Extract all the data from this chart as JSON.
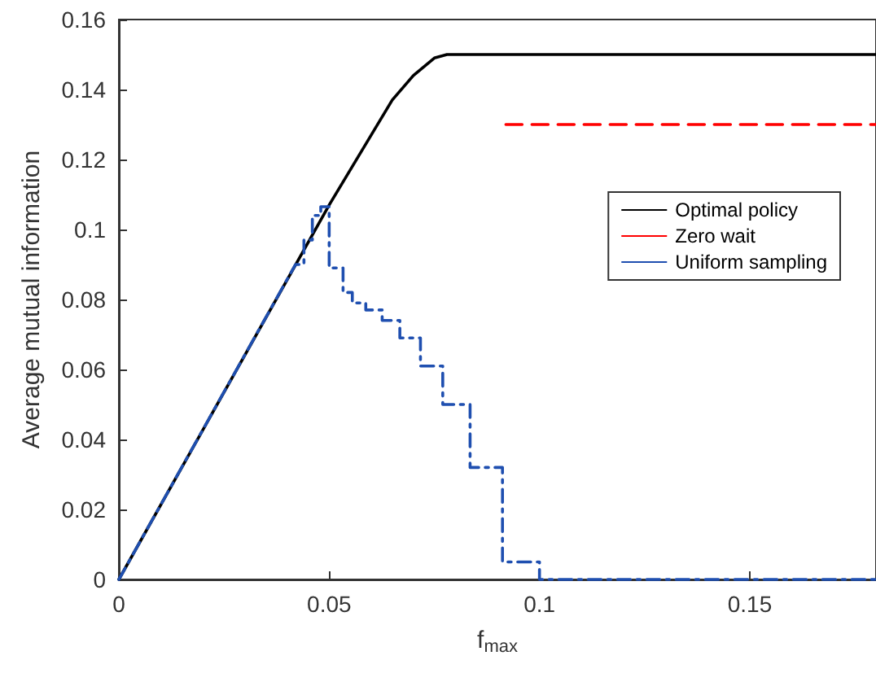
{
  "chart_data": {
    "type": "line",
    "xlabel": "f$_{max}$",
    "ylabel": "Average mutual information",
    "xlim": [
      0,
      0.18
    ],
    "ylim": [
      0,
      0.16
    ],
    "xticks": [
      0,
      0.05,
      0.1,
      0.15
    ],
    "yticks": [
      0,
      0.02,
      0.04,
      0.06,
      0.08,
      0.1,
      0.12,
      0.14,
      0.16
    ],
    "grid": false,
    "legend": "right",
    "marker": "none",
    "series": [
      {
        "name": "Optimal policy",
        "color": "#000000",
        "line_style": "solid",
        "x": [
          0,
          0.05,
          0.06,
          0.065,
          0.07,
          0.075,
          0.078,
          0.18
        ],
        "values": [
          0,
          0.107,
          0.127,
          0.137,
          0.144,
          0.149,
          0.15,
          0.15
        ]
      },
      {
        "name": "Zero wait",
        "color": "#ff0000",
        "line_style": "dashed",
        "x": [
          0.092,
          0.18
        ],
        "values": [
          0.13,
          0.13
        ]
      },
      {
        "name": "Uniform sampling",
        "color": "#1f4fb0",
        "line_style": "dashdot",
        "x": [
          0,
          0.042,
          0.044,
          0.044,
          0.046,
          0.046,
          0.048,
          0.048,
          0.05,
          0.05,
          0.0533,
          0.0533,
          0.0555,
          0.0555,
          0.0587,
          0.0587,
          0.0626,
          0.0626,
          0.0668,
          0.0668,
          0.0717,
          0.0717,
          0.077,
          0.077,
          0.0835,
          0.0835,
          0.0912,
          0.0912,
          0.1,
          0.1,
          0.18
        ],
        "values": [
          0,
          0.09,
          0.09,
          0.097,
          0.097,
          0.104,
          0.104,
          0.1065,
          0.1065,
          0.089,
          0.089,
          0.082,
          0.082,
          0.079,
          0.079,
          0.077,
          0.077,
          0.074,
          0.074,
          0.069,
          0.069,
          0.061,
          0.061,
          0.05,
          0.05,
          0.032,
          0.032,
          0.005,
          0.005,
          0,
          0
        ]
      }
    ]
  }
}
